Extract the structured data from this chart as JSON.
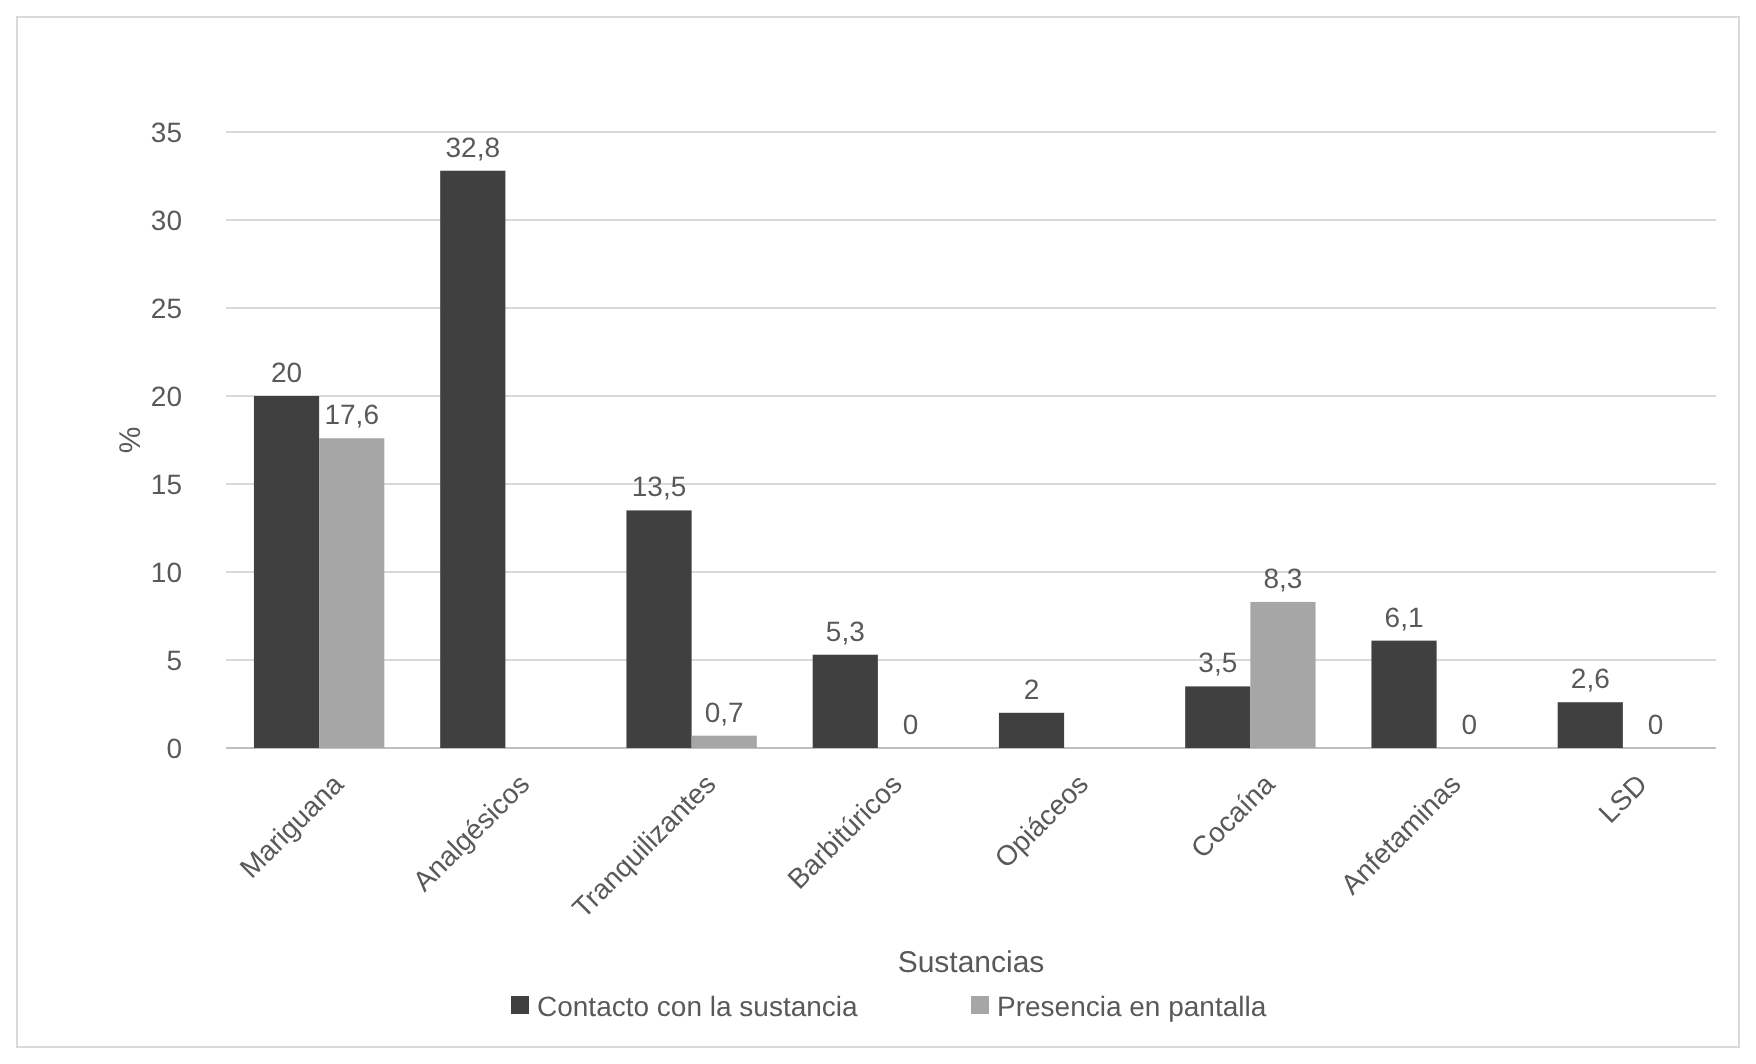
{
  "chart_data": {
    "type": "bar",
    "xlabel": "Sustancias",
    "ylabel": "%",
    "categories": [
      "Mariguana",
      "Analgésicos",
      "Tranquilizantes",
      "Barbitúricos",
      "Opiáceos",
      "Cocaína",
      "Anfetaminas",
      "LSD"
    ],
    "series": [
      {
        "name": "Contacto con la sustancia",
        "color": "#404040",
        "values": [
          20,
          32.8,
          13.5,
          5.3,
          2,
          3.5,
          6.1,
          2.6
        ],
        "value_labels": [
          "20",
          "32,8",
          "13,5",
          "5,3",
          "2",
          "3,5",
          "6,1",
          "2,6"
        ]
      },
      {
        "name": "Presencia en pantalla",
        "color": "#a6a6a6",
        "values": [
          17.6,
          null,
          0.7,
          0,
          null,
          8.3,
          0,
          0
        ],
        "value_labels": [
          "17,6",
          null,
          "0,7",
          "0",
          null,
          "8,3",
          "0",
          "0"
        ]
      }
    ],
    "ylim": [
      0,
      35
    ],
    "yticks": [
      0,
      5,
      10,
      15,
      20,
      25,
      30,
      35
    ],
    "grid": "y",
    "legend": "bottom"
  }
}
